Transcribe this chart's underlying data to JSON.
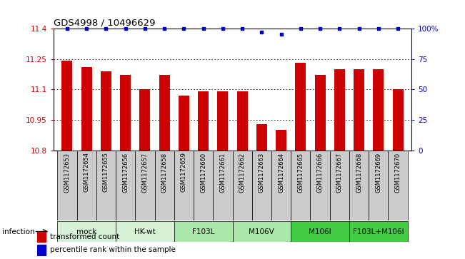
{
  "title": "GDS4998 / 10496629",
  "samples": [
    "GSM1172653",
    "GSM1172654",
    "GSM1172655",
    "GSM1172656",
    "GSM1172657",
    "GSM1172658",
    "GSM1172659",
    "GSM1172660",
    "GSM1172661",
    "GSM1172662",
    "GSM1172663",
    "GSM1172664",
    "GSM1172665",
    "GSM1172666",
    "GSM1172667",
    "GSM1172668",
    "GSM1172669",
    "GSM1172670"
  ],
  "bar_values": [
    11.24,
    11.21,
    11.19,
    11.17,
    11.1,
    11.17,
    11.07,
    11.09,
    11.09,
    11.09,
    10.93,
    10.9,
    11.23,
    11.17,
    11.2,
    11.2,
    11.2,
    11.1
  ],
  "percentile_values": [
    100,
    100,
    100,
    100,
    100,
    100,
    100,
    100,
    100,
    100,
    97,
    95,
    100,
    100,
    100,
    100,
    100,
    100
  ],
  "groups": [
    {
      "label": "mock",
      "start": 0,
      "end": 3,
      "color": "#d5f0d5"
    },
    {
      "label": "HK-wt",
      "start": 3,
      "end": 6,
      "color": "#d5f0d5"
    },
    {
      "label": "F103L",
      "start": 6,
      "end": 9,
      "color": "#aae8aa"
    },
    {
      "label": "M106V",
      "start": 9,
      "end": 12,
      "color": "#aae8aa"
    },
    {
      "label": "M106I",
      "start": 12,
      "end": 15,
      "color": "#44cc44"
    },
    {
      "label": "F103L+M106I",
      "start": 15,
      "end": 18,
      "color": "#44cc44"
    }
  ],
  "ylim": [
    10.8,
    11.4
  ],
  "yticks": [
    10.8,
    10.95,
    11.1,
    11.25,
    11.4
  ],
  "ytick_labels": [
    "10.8",
    "10.95",
    "11.1",
    "11.25",
    "11.4"
  ],
  "right_yticks": [
    0,
    25,
    50,
    75,
    100
  ],
  "right_ytick_labels": [
    "0",
    "25",
    "50",
    "75",
    "100%"
  ],
  "bar_color": "#cc0000",
  "dot_color": "#0000cc",
  "bar_width": 0.55,
  "ylabel_left_color": "#cc0000",
  "ylabel_right_color": "#0000cc",
  "grid_color": "#000000",
  "bg_color": "#ffffff",
  "sample_box_color": "#cccccc",
  "infection_label": "infection"
}
